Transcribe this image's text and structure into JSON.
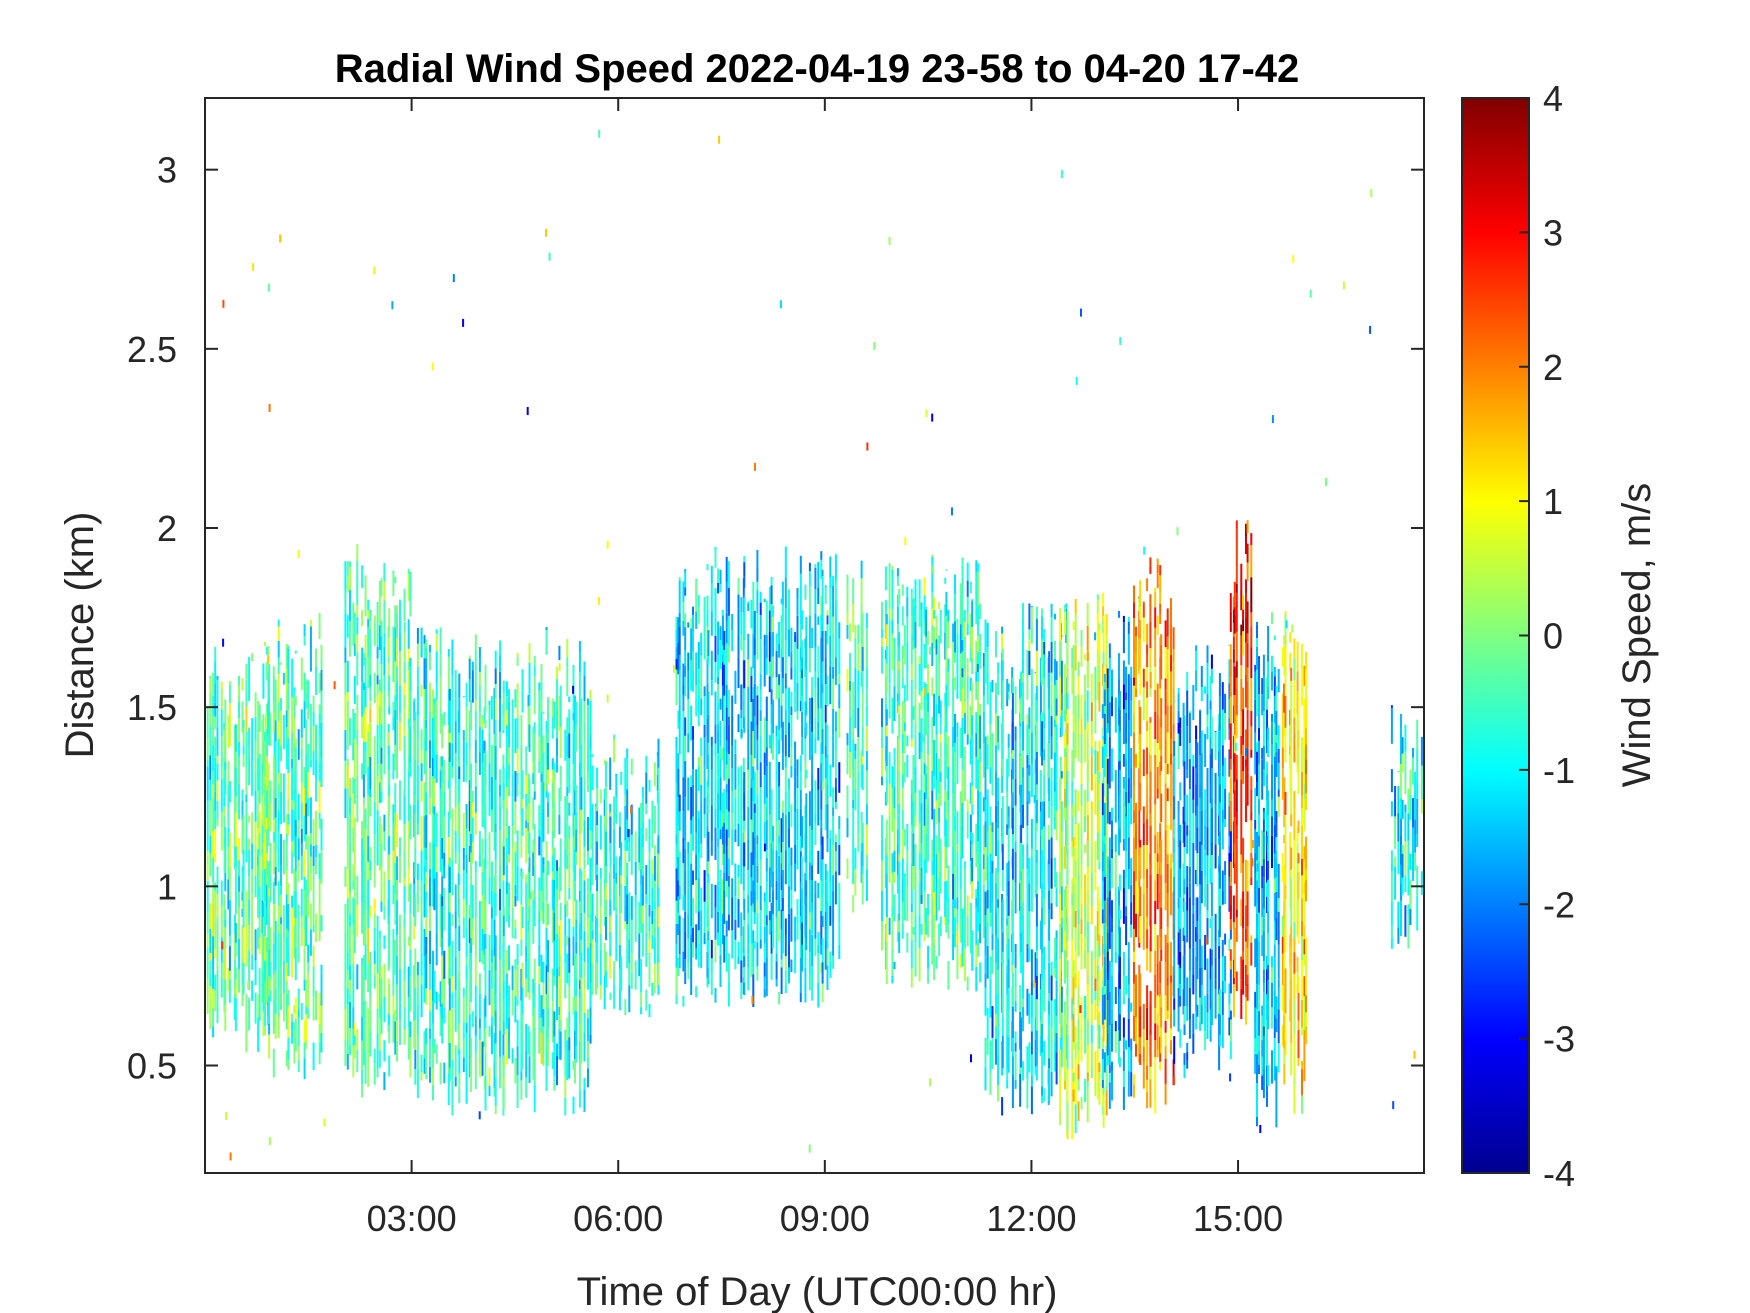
{
  "chart_data": {
    "type": "heatmap",
    "title": "Radial Wind Speed 2022-04-19 23-58 to 04-20 17-42",
    "xlabel": "Time of Day (UTC00:00 hr)",
    "ylabel": "Distance (km)",
    "x_unit": "hours (UTC)",
    "xlim": [
      0.0,
      17.7
    ],
    "ylim": [
      0.2,
      3.2
    ],
    "x_ticks": [
      {
        "value": 3,
        "label": "03:00"
      },
      {
        "value": 6,
        "label": "06:00"
      },
      {
        "value": 9,
        "label": "09:00"
      },
      {
        "value": 12,
        "label": "12:00"
      },
      {
        "value": 15,
        "label": "15:00"
      }
    ],
    "y_ticks": [
      {
        "value": 0.5,
        "label": "0.5"
      },
      {
        "value": 1,
        "label": "1"
      },
      {
        "value": 1.5,
        "label": "1.5"
      },
      {
        "value": 2,
        "label": "2"
      },
      {
        "value": 2.5,
        "label": "2.5"
      },
      {
        "value": 3,
        "label": "3"
      }
    ],
    "colorbar": {
      "label": "Wind Speed, m/s",
      "colormap": "jet",
      "clim": [
        -4,
        4
      ],
      "ticks": [
        {
          "value": 4,
          "label": "4"
        },
        {
          "value": 3,
          "label": "3"
        },
        {
          "value": 2,
          "label": "2"
        },
        {
          "value": 1,
          "label": "1"
        },
        {
          "value": 0,
          "label": "0"
        },
        {
          "value": -1,
          "label": "-1"
        },
        {
          "value": -2,
          "label": "-2"
        },
        {
          "value": -3,
          "label": "-3"
        },
        {
          "value": -4,
          "label": "-4"
        }
      ]
    },
    "regions": [
      {
        "t_start": 0.0,
        "t_end": 1.0,
        "d_low": 0.62,
        "d_high": 1.5,
        "mean_speed": -0.3
      },
      {
        "t_start": 0.8,
        "t_end": 1.7,
        "d_low": 0.55,
        "d_high": 1.6,
        "mean_speed": -0.4
      },
      {
        "t_start": 2.0,
        "t_end": 3.0,
        "d_low": 0.5,
        "d_high": 1.8,
        "mean_speed": -0.3
      },
      {
        "t_start": 3.0,
        "t_end": 5.6,
        "d_low": 0.45,
        "d_high": 1.55,
        "mean_speed": -0.6
      },
      {
        "t_start": 5.6,
        "t_end": 6.6,
        "d_low": 0.72,
        "d_high": 1.25,
        "mean_speed": -0.7
      },
      {
        "t_start": 6.8,
        "t_end": 9.2,
        "d_low": 0.75,
        "d_high": 1.78,
        "mean_speed": -1.2
      },
      {
        "t_start": 9.3,
        "t_end": 9.6,
        "d_low": 0.95,
        "d_high": 1.8,
        "mean_speed": -0.5
      },
      {
        "t_start": 9.8,
        "t_end": 11.3,
        "d_low": 0.78,
        "d_high": 1.76,
        "mean_speed": -0.5
      },
      {
        "t_start": 11.3,
        "t_end": 12.5,
        "d_low": 0.45,
        "d_high": 1.62,
        "mean_speed": -1.0
      },
      {
        "t_start": 12.4,
        "t_end": 13.1,
        "d_low": 0.38,
        "d_high": 1.66,
        "mean_speed": 0.5
      },
      {
        "t_start": 13.0,
        "t_end": 13.45,
        "d_low": 0.45,
        "d_high": 1.6,
        "mean_speed": -1.6
      },
      {
        "t_start": 13.45,
        "t_end": 14.05,
        "d_low": 0.45,
        "d_high": 1.75,
        "mean_speed": 2.0
      },
      {
        "t_start": 14.05,
        "t_end": 14.9,
        "d_low": 0.55,
        "d_high": 1.5,
        "mean_speed": -1.6
      },
      {
        "t_start": 14.85,
        "t_end": 15.2,
        "d_low": 0.7,
        "d_high": 1.85,
        "mean_speed": 2.5
      },
      {
        "t_start": 15.2,
        "t_end": 15.6,
        "d_low": 0.4,
        "d_high": 1.6,
        "mean_speed": -1.4
      },
      {
        "t_start": 15.6,
        "t_end": 16.0,
        "d_low": 0.45,
        "d_high": 1.6,
        "mean_speed": 1.2
      },
      {
        "t_start": 17.2,
        "t_end": 17.7,
        "d_low": 0.9,
        "d_high": 1.35,
        "mean_speed": -1.0
      }
    ]
  }
}
